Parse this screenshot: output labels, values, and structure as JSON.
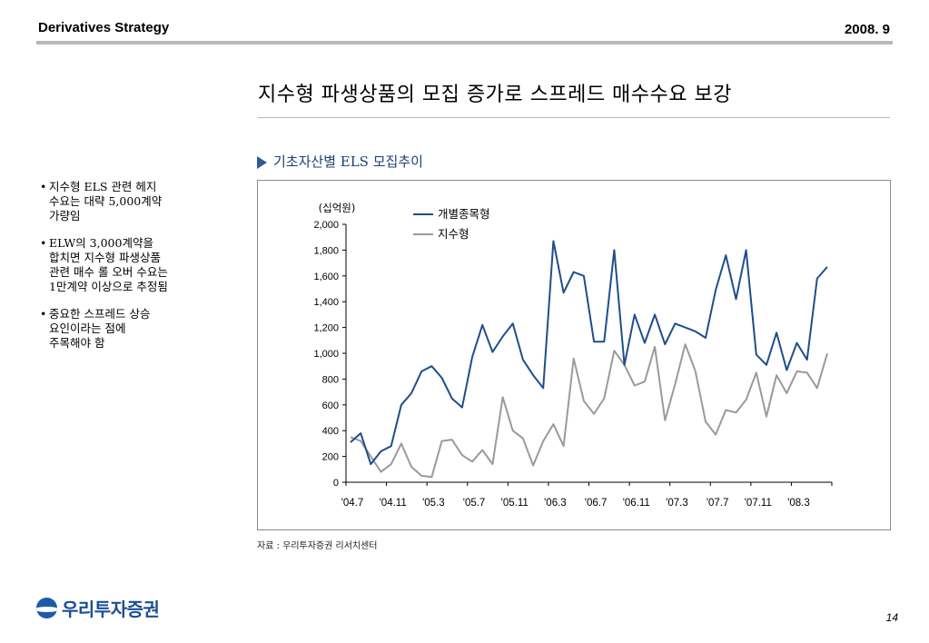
{
  "header": {
    "title": "Derivatives Strategy",
    "date": "2008. 9"
  },
  "slide": {
    "title": "지수형 파생상품의 모집 증가로 스프레드 매수수요 보강",
    "subtitle": "기초자산별 ELS 모집추이"
  },
  "bullets": [
    {
      "dot": "•",
      "text": "지수형 ELS 관련 헤지\n수요는 대략 5,000계약\n가량임"
    },
    {
      "dot": "•",
      "text": "ELW의 3,000계약을\n합치면 지수형 파생상품\n관련 매수 롤 오버 수요는\n1만계약 이상으로 추정됨"
    },
    {
      "dot": "•",
      "text": "중요한 스프레드 상승\n요인이라는 점에\n주목해야 함"
    }
  ],
  "source": "자료 : 우리투자증권 리서치센터",
  "logo": {
    "text": "우리투자증권",
    "icon": "wooritooja-logo-icon"
  },
  "page_number": "14",
  "colors": {
    "series_individual": "#1f4e8c",
    "series_index": "#9a9a9a",
    "subtitle_marker": "#2d5a97",
    "logo": "#1c4e96"
  },
  "chart_data": {
    "type": "line",
    "unit_label": "(십억원)",
    "ylim": [
      0,
      2000
    ],
    "yticks": [
      "0",
      "200",
      "400",
      "600",
      "800",
      "1,000",
      "1,200",
      "1,400",
      "1,600",
      "1,800",
      "2,000"
    ],
    "xtick_labels": [
      "'04.7",
      "'04.11",
      "'05.3",
      "'05.7",
      "'05.11",
      "'06.3",
      "'06.7",
      "'06.11",
      "'07.3",
      "'07.7",
      "'07.11",
      "'08.3"
    ],
    "legend_position": "top",
    "series": [
      {
        "name": "개별종목형",
        "color": "#1f4e8c",
        "values": [
          310,
          380,
          140,
          240,
          280,
          600,
          690,
          860,
          900,
          810,
          650,
          580,
          970,
          1220,
          1010,
          1130,
          1230,
          950,
          830,
          730,
          1870,
          1470,
          1630,
          1600,
          1090,
          1090,
          1800,
          910,
          1300,
          1080,
          1300,
          1070,
          1230,
          1200,
          1170,
          1120,
          1490,
          1760,
          1420,
          1800,
          990,
          910,
          1160,
          870,
          1080,
          950,
          1580,
          1670
        ]
      },
      {
        "name": "지수형",
        "color": "#9a9a9a",
        "values": [
          350,
          320,
          200,
          80,
          140,
          300,
          120,
          50,
          40,
          320,
          330,
          210,
          160,
          250,
          140,
          660,
          400,
          340,
          130,
          320,
          450,
          280,
          960,
          630,
          530,
          650,
          1020,
          910,
          750,
          780,
          1050,
          480,
          760,
          1070,
          860,
          470,
          370,
          560,
          540,
          640,
          850,
          510,
          830,
          690,
          860,
          850,
          730,
          1000
        ]
      }
    ]
  }
}
